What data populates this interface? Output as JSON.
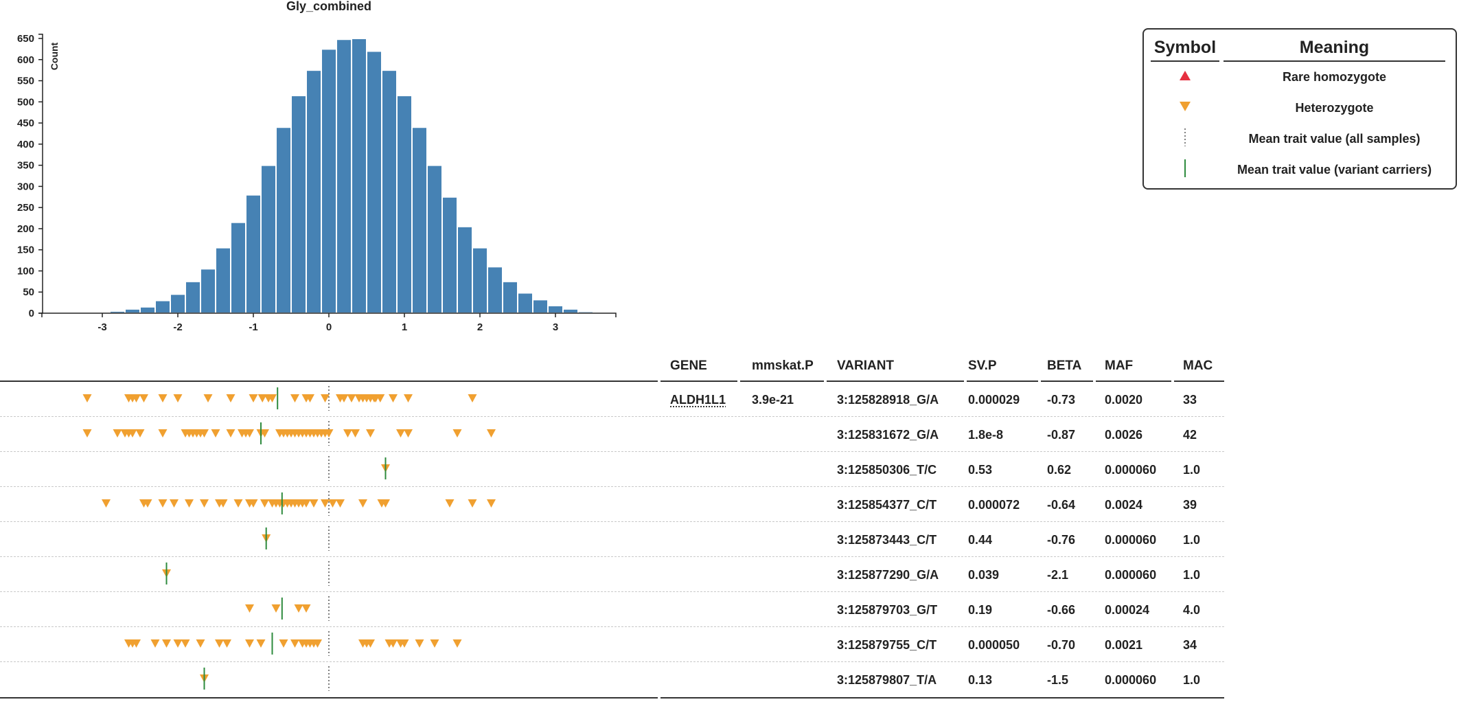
{
  "chart_data": {
    "type": "bar",
    "title": "Gly_combined",
    "ylabel": "Count",
    "xlabel": "",
    "bins": {
      "start": -3.5,
      "width": 0.2,
      "values": [
        0,
        0,
        0,
        5,
        10,
        15,
        30,
        45,
        75,
        105,
        155,
        215,
        280,
        350,
        440,
        515,
        575,
        625,
        648,
        650,
        620,
        575,
        515,
        440,
        350,
        275,
        205,
        155,
        110,
        75,
        48,
        32,
        18,
        10,
        4,
        0,
        0
      ]
    },
    "xticks": [
      "-3",
      "-2",
      "-1",
      "0",
      "1",
      "2",
      "3"
    ],
    "xtick_values": [
      -3,
      -2,
      -1,
      0,
      1,
      2,
      3
    ],
    "xlim": [
      -3.8,
      3.8
    ],
    "yticks": [
      "0",
      "50",
      "100",
      "150",
      "200",
      "250",
      "300",
      "350",
      "400",
      "450",
      "500",
      "550",
      "600",
      "650"
    ],
    "ytick_values": [
      0,
      50,
      100,
      150,
      200,
      250,
      300,
      350,
      400,
      450,
      500,
      550,
      600,
      650
    ],
    "ylim": [
      0,
      660
    ],
    "colors": {
      "bar": "#4682b4",
      "heterozygote": "#f0a030",
      "rare_homozygote": "#e63040",
      "carrier_mean": "#2e8b3e",
      "all_mean": "#555555"
    },
    "all_samples_mean": 0.0,
    "variant_rows": [
      {
        "carrier_mean": -0.68,
        "heterozygotes": [
          -3.2,
          -2.65,
          -2.6,
          -2.55,
          -2.45,
          -2.2,
          -2.0,
          -1.6,
          -1.3,
          -1.0,
          -0.88,
          -0.8,
          -0.75,
          -0.45,
          -0.3,
          -0.25,
          -0.05,
          0.15,
          0.2,
          0.3,
          0.4,
          0.45,
          0.5,
          0.55,
          0.6,
          0.62,
          0.68,
          0.85,
          1.05,
          1.9
        ]
      },
      {
        "carrier_mean": -0.9,
        "heterozygotes": [
          -3.2,
          -2.8,
          -2.7,
          -2.65,
          -2.6,
          -2.5,
          -2.2,
          -1.9,
          -1.85,
          -1.8,
          -1.75,
          -1.7,
          -1.65,
          -1.5,
          -1.3,
          -1.15,
          -1.1,
          -1.05,
          -0.9,
          -0.85,
          -0.65,
          -0.6,
          -0.55,
          -0.5,
          -0.45,
          -0.4,
          -0.35,
          -0.3,
          -0.25,
          -0.2,
          -0.15,
          -0.1,
          -0.05,
          0.0,
          0.25,
          0.35,
          0.55,
          0.95,
          1.05,
          1.7,
          2.15
        ]
      },
      {
        "carrier_mean": 0.75,
        "heterozygotes": [
          0.75
        ]
      },
      {
        "carrier_mean": -0.62,
        "heterozygotes": [
          -2.95,
          -2.45,
          -2.4,
          -2.2,
          -2.05,
          -1.85,
          -1.65,
          -1.45,
          -1.4,
          -1.2,
          -1.05,
          -1.0,
          -0.85,
          -0.75,
          -0.7,
          -0.65,
          -0.6,
          -0.55,
          -0.5,
          -0.45,
          -0.4,
          -0.35,
          -0.3,
          -0.2,
          -0.05,
          0.05,
          0.15,
          0.45,
          0.7,
          0.75,
          1.6,
          1.9,
          2.15
        ]
      },
      {
        "carrier_mean": -0.83,
        "heterozygotes": [
          -0.83
        ]
      },
      {
        "carrier_mean": -2.15,
        "heterozygotes": [
          -2.15
        ]
      },
      {
        "carrier_mean": -0.62,
        "heterozygotes": [
          -1.05,
          -0.7,
          -0.4,
          -0.3
        ]
      },
      {
        "carrier_mean": -0.75,
        "heterozygotes": [
          -2.65,
          -2.6,
          -2.55,
          -2.3,
          -2.15,
          -2.0,
          -1.9,
          -1.7,
          -1.45,
          -1.35,
          -1.05,
          -0.9,
          -0.6,
          -0.45,
          -0.35,
          -0.3,
          -0.25,
          -0.2,
          -0.15,
          0.45,
          0.5,
          0.55,
          0.8,
          0.85,
          0.95,
          1.0,
          1.2,
          1.4,
          1.7
        ]
      },
      {
        "carrier_mean": -1.65,
        "heterozygotes": [
          -1.65
        ]
      }
    ]
  },
  "legend": {
    "symbol_header": "Symbol",
    "meaning_header": "Meaning",
    "items": [
      {
        "icon": "red-up-triangle-icon",
        "label": "Rare homozygote"
      },
      {
        "icon": "orange-down-triangle-icon",
        "label": "Heterozygote"
      },
      {
        "icon": "dotted-line-icon",
        "label": "Mean trait value (all samples)"
      },
      {
        "icon": "green-line-icon",
        "label": "Mean trait value (variant carriers)"
      }
    ]
  },
  "table": {
    "headers": {
      "gene": "GENE",
      "mmskat_p": "mmskat.P",
      "variant": "VARIANT",
      "sv_p": "SV.P",
      "beta": "BETA",
      "maf": "MAF",
      "mac": "MAC"
    },
    "gene": "ALDH1L1",
    "mmskat_p": "3.9e-21",
    "rows": [
      {
        "variant": "3:125828918_G/A",
        "sv_p": "0.000029",
        "beta": "-0.73",
        "maf": "0.0020",
        "mac": "33"
      },
      {
        "variant": "3:125831672_G/A",
        "sv_p": "1.8e-8",
        "beta": "-0.87",
        "maf": "0.0026",
        "mac": "42"
      },
      {
        "variant": "3:125850306_T/C",
        "sv_p": "0.53",
        "beta": "0.62",
        "maf": "0.000060",
        "mac": "1.0"
      },
      {
        "variant": "3:125854377_C/T",
        "sv_p": "0.000072",
        "beta": "-0.64",
        "maf": "0.0024",
        "mac": "39"
      },
      {
        "variant": "3:125873443_C/T",
        "sv_p": "0.44",
        "beta": "-0.76",
        "maf": "0.000060",
        "mac": "1.0"
      },
      {
        "variant": "3:125877290_G/A",
        "sv_p": "0.039",
        "beta": "-2.1",
        "maf": "0.000060",
        "mac": "1.0"
      },
      {
        "variant": "3:125879703_G/T",
        "sv_p": "0.19",
        "beta": "-0.66",
        "maf": "0.00024",
        "mac": "4.0"
      },
      {
        "variant": "3:125879755_C/T",
        "sv_p": "0.000050",
        "beta": "-0.70",
        "maf": "0.0021",
        "mac": "34"
      },
      {
        "variant": "3:125879807_T/A",
        "sv_p": "0.13",
        "beta": "-1.5",
        "maf": "0.000060",
        "mac": "1.0"
      }
    ]
  }
}
